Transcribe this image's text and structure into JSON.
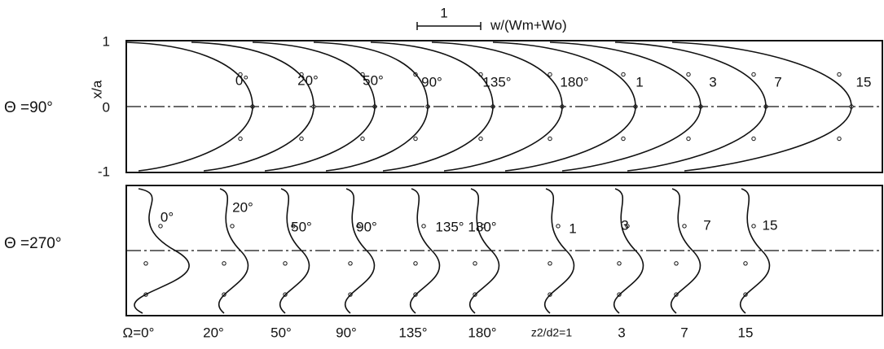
{
  "scale_bar": {
    "value": "1",
    "label": "w/(Wm+Wo)"
  },
  "panels": [
    {
      "label": "Θ =90°",
      "y_axis": {
        "title": "x/a",
        "ticks": [
          "1",
          "0",
          "-1"
        ]
      },
      "curve_labels": [
        "0°",
        "20°",
        "50°",
        "90°",
        "135°",
        "180°",
        "1",
        "3",
        "7",
        "15"
      ]
    },
    {
      "label": "Θ =270°",
      "curve_labels": [
        "0°",
        "20°",
        "50°",
        "90°",
        "135°",
        "180°",
        "1",
        "3",
        "7",
        "15"
      ]
    }
  ],
  "x_labels": [
    "Ω=0°",
    "20°",
    "50°",
    "90°",
    "135°",
    "180°",
    "z2/d2=1",
    "3",
    "7",
    "15"
  ]
}
